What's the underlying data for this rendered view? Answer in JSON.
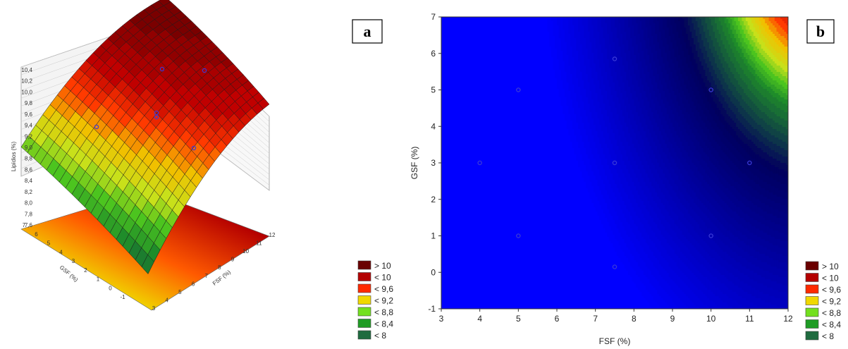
{
  "panels": {
    "a": "a",
    "b": "b"
  },
  "legend_colors": [
    "#1f6b3f",
    "#1f9c24",
    "#73e01e",
    "#f0d800",
    "#ff2a00",
    "#b40000",
    "#6a0000"
  ],
  "legend_labels": [
    "< 8",
    "< 8,4",
    "< 8,8",
    "< 9,2",
    "< 9,6",
    "< 10",
    "> 10"
  ],
  "chart_data": [
    {
      "type": "surface",
      "panel": "a",
      "xlabel": "FSF (%)",
      "ylabel": "GSF (%)",
      "zlabel": "Lipídios (%)",
      "x_ticks": [
        "3",
        "4",
        "5",
        "6",
        "7",
        "8",
        "9",
        "10",
        "11",
        "12"
      ],
      "y_ticks": [
        "-1",
        "0",
        "1",
        "2",
        "3",
        "4",
        "5",
        "6",
        "7"
      ],
      "z_ticks": [
        "7,6",
        "7,8",
        "8,0",
        "8,2",
        "8,4",
        "8,6",
        "8,8",
        "9,0",
        "9,2",
        "9,4",
        "9,6",
        "9,8",
        "10,0",
        "10,2",
        "10,4"
      ],
      "legend": [
        "> 10",
        "< 10",
        "< 9,6",
        "< 9,2",
        "< 8,8",
        "< 8,4",
        "< 8"
      ]
    },
    {
      "type": "contour",
      "panel": "b",
      "xlabel": "FSF (%)",
      "ylabel": "GSF (%)",
      "x_ticks": [
        3,
        4,
        5,
        6,
        7,
        8,
        9,
        10,
        11,
        12
      ],
      "y_ticks": [
        -1,
        0,
        1,
        2,
        3,
        4,
        5,
        6,
        7
      ],
      "xlim": [
        3,
        12
      ],
      "ylim": [
        -1,
        7
      ],
      "levels": [
        8,
        8.4,
        8.8,
        9.2,
        9.6,
        10
      ],
      "legend": [
        "> 10",
        "< 10",
        "< 9,6",
        "< 9,2",
        "< 8,8",
        "< 8,4",
        "< 8"
      ],
      "points": [
        {
          "x": 4,
          "y": 3
        },
        {
          "x": 5,
          "y": 5
        },
        {
          "x": 5,
          "y": 1
        },
        {
          "x": 7.5,
          "y": 5.85
        },
        {
          "x": 7.5,
          "y": 3
        },
        {
          "x": 7.5,
          "y": 0.15
        },
        {
          "x": 10,
          "y": 5
        },
        {
          "x": 10,
          "y": 1
        },
        {
          "x": 11,
          "y": 3
        }
      ]
    }
  ]
}
